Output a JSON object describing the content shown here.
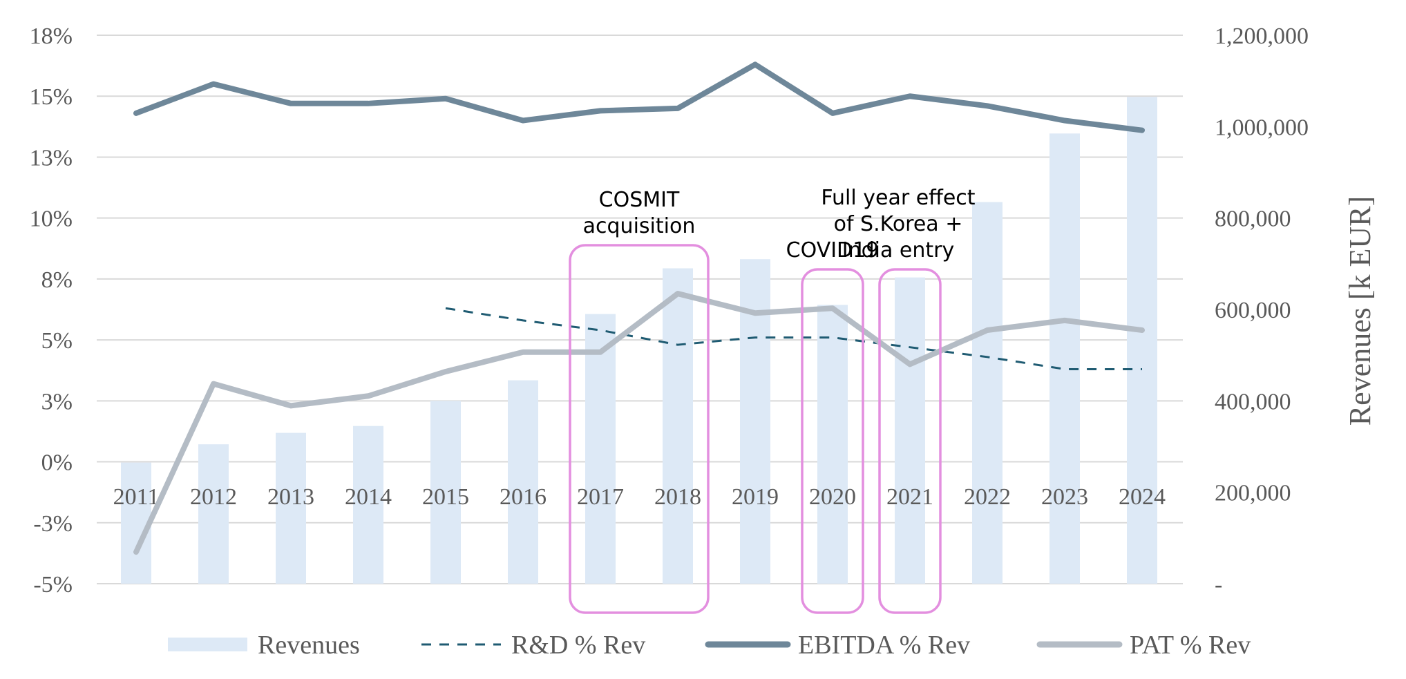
{
  "chart_data": {
    "type": "bar",
    "categories": [
      "2011",
      "2012",
      "2013",
      "2014",
      "2015",
      "2016",
      "2017",
      "2018",
      "2019",
      "2020",
      "2021",
      "2022",
      "2023",
      "2024"
    ],
    "y_left": {
      "ticks": [
        -5,
        -2.5,
        0,
        2.5,
        5,
        7.5,
        10,
        12.5,
        15,
        17.5
      ],
      "tick_labels": [
        "-5%",
        "-3%",
        "0%",
        "3%",
        "5%",
        "8%",
        "10%",
        "13%",
        "15%",
        "18%"
      ],
      "lim": [
        -5,
        17.5
      ]
    },
    "y_right": {
      "label": "Revenues [k EUR]",
      "ticks": [
        0,
        200000,
        400000,
        600000,
        800000,
        1000000,
        1200000
      ],
      "tick_labels": [
        "-",
        "200,000",
        "400,000",
        "600,000",
        "800,000",
        "1,000,000",
        "1,200,000"
      ],
      "lim": [
        0,
        1200000
      ]
    },
    "series": [
      {
        "name": "Revenues",
        "kind": "bar",
        "axis": "right",
        "color": "#dde9f6",
        "values": [
          265000,
          305000,
          330000,
          345000,
          400000,
          445000,
          590000,
          690000,
          710000,
          610000,
          670000,
          835000,
          985000,
          1065000
        ]
      },
      {
        "name": "R&D % Rev",
        "kind": "line-dashed",
        "axis": "left",
        "color": "#1f5b72",
        "values": [
          null,
          null,
          null,
          null,
          6.3,
          5.8,
          5.4,
          4.8,
          5.1,
          5.1,
          4.7,
          4.3,
          3.8,
          3.8
        ]
      },
      {
        "name": "EBITDA % Rev",
        "kind": "line",
        "axis": "left",
        "color": "#6e8799",
        "values": [
          14.3,
          15.5,
          14.7,
          14.7,
          14.9,
          14.0,
          14.4,
          14.5,
          16.3,
          14.3,
          15.0,
          14.6,
          14.0,
          13.6
        ]
      },
      {
        "name": "PAT % Rev",
        "kind": "line",
        "axis": "left",
        "color": "#b4bcc5",
        "values": [
          -3.7,
          3.2,
          2.3,
          2.7,
          3.7,
          4.5,
          4.5,
          6.9,
          6.1,
          6.3,
          4.0,
          5.4,
          5.8,
          5.4
        ]
      }
    ],
    "annotations": [
      {
        "lines": [
          "COSMIT",
          "acquisition"
        ],
        "years": [
          "2017",
          "2018"
        ]
      },
      {
        "lines": [
          "COVID19"
        ],
        "years": [
          "2020"
        ]
      },
      {
        "lines": [
          "Full year effect",
          "of S.Korea +",
          "India entry"
        ],
        "years": [
          "2021"
        ]
      }
    ],
    "highlight_color": "#e38fdf",
    "legend_position": "bottom",
    "grid": "horizontal"
  }
}
